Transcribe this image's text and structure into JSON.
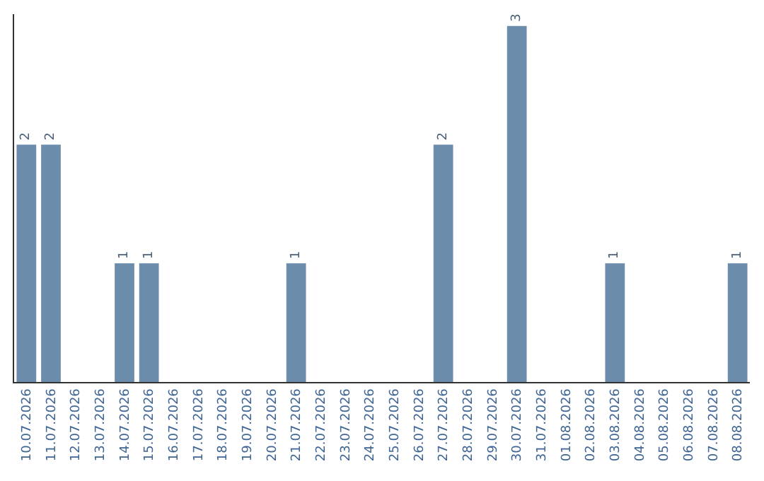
{
  "chart_data": {
    "type": "bar",
    "categories": [
      "10.07.2026",
      "11.07.2026",
      "12.07.2026",
      "13.07.2026",
      "14.07.2026",
      "15.07.2026",
      "16.07.2026",
      "17.07.2026",
      "18.07.2026",
      "19.07.2026",
      "20.07.2026",
      "21.07.2026",
      "22.07.2026",
      "23.07.2026",
      "24.07.2026",
      "25.07.2026",
      "26.07.2026",
      "27.07.2026",
      "28.07.2026",
      "29.07.2026",
      "30.07.2026",
      "31.07.2026",
      "01.08.2026",
      "02.08.2026",
      "03.08.2026",
      "04.08.2026",
      "05.08.2026",
      "06.08.2026",
      "07.08.2026",
      "08.08.2026"
    ],
    "values": [
      2,
      2,
      0,
      0,
      1,
      1,
      0,
      0,
      0,
      0,
      0,
      1,
      0,
      0,
      0,
      0,
      0,
      2,
      0,
      0,
      3,
      0,
      0,
      0,
      1,
      0,
      0,
      0,
      0,
      1
    ],
    "value_labels": [
      "2",
      "2",
      null,
      null,
      "1",
      "1",
      null,
      null,
      null,
      null,
      null,
      "1",
      null,
      null,
      null,
      null,
      null,
      "2",
      null,
      null,
      "3",
      null,
      null,
      null,
      "1",
      null,
      null,
      null,
      null,
      "1"
    ],
    "color": "#6b8cab",
    "ylim": [
      0,
      3.1
    ],
    "tick_labels": "x",
    "legend": false
  }
}
